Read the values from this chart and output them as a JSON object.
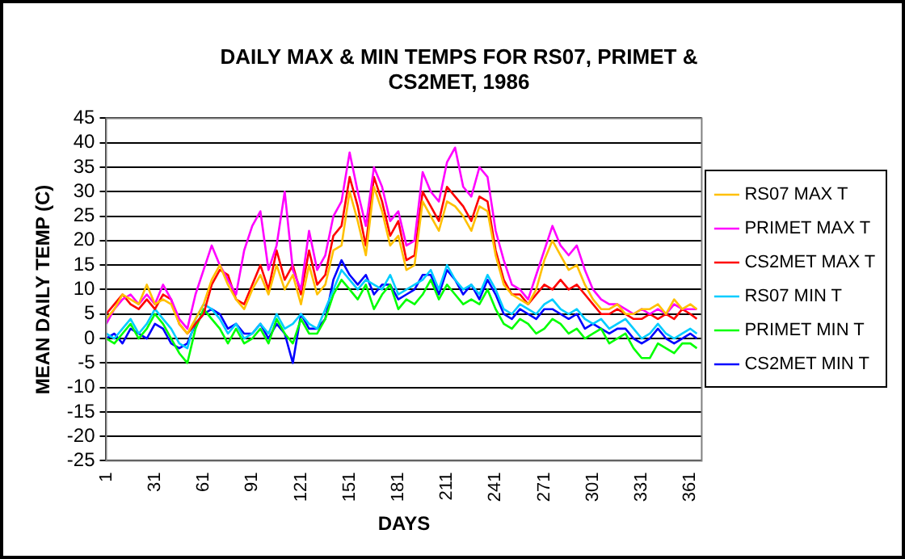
{
  "chart_data": {
    "type": "line",
    "title": "DAILY MAX & MIN TEMPS FOR RS07, PRIMET & CS2MET, 1986",
    "xlabel": "DAYS",
    "ylabel": "MEAN DAILY TEMP (C)",
    "x": [
      1,
      6,
      11,
      16,
      21,
      26,
      31,
      36,
      41,
      46,
      51,
      56,
      61,
      66,
      71,
      76,
      81,
      86,
      91,
      96,
      101,
      106,
      111,
      116,
      121,
      126,
      131,
      136,
      141,
      146,
      151,
      156,
      161,
      166,
      171,
      176,
      181,
      186,
      191,
      196,
      201,
      206,
      211,
      216,
      221,
      226,
      231,
      236,
      241,
      246,
      251,
      256,
      261,
      266,
      271,
      276,
      281,
      286,
      291,
      296,
      301,
      306,
      311,
      316,
      321,
      326,
      331,
      336,
      341,
      346,
      351,
      356,
      361,
      365
    ],
    "xlim": [
      1,
      368
    ],
    "xticks": [
      1,
      31,
      61,
      91,
      121,
      151,
      181,
      211,
      241,
      271,
      301,
      331,
      361
    ],
    "ylim": [
      -25,
      45
    ],
    "yticks": [
      -25,
      -20,
      -15,
      -10,
      -5,
      0,
      5,
      10,
      15,
      20,
      25,
      30,
      35,
      40,
      45
    ],
    "grid": "y",
    "legend": "right",
    "marker": "none",
    "line_style": "solid",
    "series": [
      {
        "name": "RS07 MAX T",
        "color": "#ffc000",
        "values": [
          4,
          6,
          9,
          8,
          7,
          11,
          7,
          8,
          7,
          3,
          1,
          4,
          7,
          12,
          15,
          11,
          8,
          6,
          10,
          13,
          9,
          15,
          10,
          13,
          7,
          15,
          9,
          11,
          18,
          19,
          30,
          24,
          17,
          31,
          26,
          19,
          21,
          14,
          15,
          28,
          25,
          22,
          28,
          27,
          25,
          22,
          27,
          26,
          17,
          11,
          9,
          8,
          7,
          10,
          16,
          20,
          17,
          14,
          15,
          11,
          8,
          6,
          6,
          7,
          5,
          5,
          6,
          6,
          7,
          5,
          8,
          6,
          7,
          6
        ]
      },
      {
        "name": "PRIMET MAX T",
        "color": "#ff00ff",
        "values": [
          3,
          6,
          8,
          9,
          7,
          9,
          7,
          11,
          8,
          4,
          2,
          9,
          14,
          19,
          15,
          12,
          9,
          18,
          23,
          26,
          14,
          19,
          30,
          14,
          10,
          22,
          14,
          17,
          25,
          28,
          38,
          30,
          23,
          35,
          31,
          24,
          26,
          19,
          20,
          34,
          30,
          28,
          36,
          39,
          31,
          29,
          35,
          33,
          22,
          16,
          11,
          10,
          8,
          13,
          18,
          23,
          19,
          17,
          19,
          14,
          10,
          8,
          7,
          7,
          6,
          5,
          6,
          5,
          6,
          5,
          7,
          6,
          6,
          6
        ]
      },
      {
        "name": "CS2MET MAX T",
        "color": "#ff0000",
        "values": [
          5,
          7,
          9,
          7,
          6,
          8,
          6,
          9,
          8,
          3,
          1,
          3,
          5,
          11,
          14,
          13,
          8,
          7,
          11,
          15,
          10,
          18,
          12,
          15,
          9,
          18,
          11,
          13,
          21,
          23,
          33,
          27,
          19,
          33,
          28,
          21,
          24,
          16,
          17,
          30,
          27,
          24,
          31,
          29,
          27,
          24,
          29,
          28,
          18,
          12,
          9,
          9,
          7,
          9,
          11,
          10,
          12,
          10,
          11,
          9,
          7,
          5,
          5,
          6,
          5,
          4,
          4,
          5,
          4,
          5,
          4,
          6,
          5,
          4
        ]
      },
      {
        "name": "RS07 MIN T",
        "color": "#00ccff",
        "values": [
          1,
          0,
          2,
          4,
          1,
          3,
          6,
          4,
          2,
          -1,
          -2,
          4,
          7,
          6,
          4,
          1,
          3,
          0,
          1,
          3,
          1,
          5,
          2,
          3,
          5,
          3,
          2,
          6,
          10,
          14,
          12,
          10,
          12,
          11,
          10,
          13,
          9,
          10,
          11,
          12,
          14,
          10,
          15,
          12,
          10,
          11,
          9,
          13,
          10,
          6,
          5,
          7,
          6,
          5,
          7,
          8,
          6,
          5,
          6,
          4,
          3,
          4,
          2,
          3,
          4,
          2,
          0,
          1,
          3,
          1,
          0,
          1,
          2,
          1
        ]
      },
      {
        "name": "PRIMET MIN T",
        "color": "#00ff00",
        "values": [
          0,
          -1,
          1,
          3,
          0,
          2,
          5,
          3,
          0,
          -3,
          -5,
          2,
          6,
          4,
          2,
          -1,
          2,
          -1,
          0,
          2,
          -1,
          4,
          1,
          -1,
          4,
          1,
          1,
          4,
          9,
          12,
          10,
          8,
          11,
          6,
          9,
          11,
          6,
          8,
          7,
          9,
          12,
          8,
          11,
          9,
          7,
          8,
          7,
          10,
          6,
          3,
          2,
          4,
          3,
          1,
          2,
          4,
          3,
          1,
          2,
          0,
          1,
          2,
          -1,
          0,
          1,
          -2,
          -4,
          -4,
          -1,
          -2,
          -3,
          -1,
          -1,
          -2
        ]
      },
      {
        "name": "CS2MET MIN T",
        "color": "#0000ff",
        "values": [
          0,
          1,
          -1,
          2,
          1,
          0,
          3,
          2,
          -1,
          -2,
          -1,
          3,
          5,
          6,
          5,
          2,
          3,
          1,
          1,
          3,
          0,
          3,
          1,
          -5,
          5,
          2,
          2,
          4,
          12,
          16,
          13,
          11,
          13,
          9,
          11,
          11,
          8,
          9,
          10,
          13,
          13,
          9,
          14,
          12,
          9,
          11,
          8,
          12,
          9,
          5,
          4,
          6,
          5,
          4,
          6,
          6,
          5,
          4,
          5,
          2,
          3,
          2,
          1,
          2,
          2,
          0,
          -1,
          0,
          2,
          0,
          -1,
          0,
          1,
          0
        ]
      }
    ]
  }
}
